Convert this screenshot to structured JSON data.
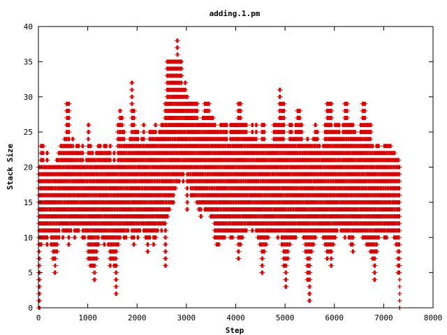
{
  "chart_data": {
    "type": "scatter",
    "title": "adding.1.pm",
    "xlabel": "Step",
    "ylabel": "Stack Size",
    "xlim": [
      0,
      8000
    ],
    "ylim": [
      0,
      40
    ],
    "x_ticks": [
      "0",
      "1000",
      "2000",
      "3000",
      "4000",
      "5000",
      "6000",
      "7000",
      "8000"
    ],
    "y_ticks": [
      "0",
      "5",
      "10",
      "15",
      "20",
      "25",
      "30",
      "35",
      "40"
    ],
    "marker": "+",
    "grid": false,
    "legend": "none",
    "series_color": "#dd0000",
    "points_x_range": [
      0,
      7330
    ],
    "points_note_series": [
      {
        "x": [
          0,
          40,
          80,
          120,
          160,
          200,
          240,
          280,
          320,
          360,
          400,
          440,
          480,
          520,
          560,
          600,
          640,
          680,
          720,
          760,
          800,
          840,
          880,
          920,
          960,
          1000,
          1040,
          1080,
          1120,
          1160,
          1200,
          1240,
          1280,
          1320,
          1360,
          1400,
          1440,
          1480,
          1520,
          1560,
          1600,
          1640,
          1680,
          1720,
          1760,
          1800,
          1840,
          1880,
          1920,
          1960,
          2000,
          2040,
          2080,
          2120,
          2160,
          2200,
          2240,
          2280,
          2320,
          2360,
          2400,
          2440,
          2480,
          2520,
          2560,
          2600,
          2640,
          2680,
          2720,
          2760,
          2800,
          2840,
          2880,
          2920,
          2960,
          3000,
          3040,
          3080,
          3120,
          3160,
          3200,
          3240,
          3280,
          3320,
          3360,
          3400,
          3440,
          3480,
          3520,
          3560,
          3600,
          3640,
          3680,
          3720,
          3760,
          3800,
          3840,
          3880,
          3920,
          3960,
          4000,
          4040,
          4080,
          4120,
          4160,
          4200,
          4240,
          4280,
          4320,
          4360,
          4400,
          4440,
          4480,
          4520,
          4560,
          4600,
          4640,
          4680,
          4720,
          4760,
          4800,
          4840,
          4880,
          4920,
          4960,
          5000,
          5040,
          5080,
          5120,
          5160,
          5200,
          5240,
          5280,
          5320,
          5360,
          5400,
          5440,
          5480,
          5520,
          5560,
          5600,
          5640,
          5680,
          5720,
          5760,
          5800,
          5840,
          5880,
          5920,
          5960,
          6000,
          6040,
          6080,
          6120,
          6160,
          6200,
          6240,
          6280,
          6320,
          6360,
          6400,
          6440,
          6480,
          6520,
          6560,
          6600,
          6640,
          6680,
          6720,
          6760,
          6800,
          6840,
          6880,
          6920,
          6960,
          7000,
          7040,
          7080,
          7120,
          7160,
          7200,
          7240,
          7280,
          7320
        ],
        "ymin": [
          0,
          9,
          10,
          10,
          9,
          11,
          9,
          7,
          5,
          8,
          10,
          12,
          10,
          11,
          11,
          9,
          11,
          12,
          10,
          11,
          11,
          12,
          10,
          10,
          11,
          7,
          6,
          6,
          4,
          7,
          9,
          11,
          10,
          9,
          10,
          9,
          6,
          7,
          6,
          2,
          9,
          10,
          11,
          10,
          10,
          11,
          12,
          10,
          9,
          11,
          10,
          11,
          12,
          11,
          10,
          8,
          10,
          11,
          9,
          10,
          11,
          12,
          11,
          12,
          6,
          13,
          14,
          15,
          15,
          17,
          18,
          18,
          19,
          18,
          20,
          14,
          18,
          16,
          16,
          16,
          15,
          14,
          13,
          15,
          14,
          14,
          14,
          13,
          13,
          10,
          9,
          9,
          10,
          10,
          10,
          11,
          11,
          10,
          10,
          11,
          11,
          7,
          9,
          10,
          11,
          11,
          12,
          12,
          11,
          12,
          11,
          10,
          9,
          5,
          8,
          9,
          10,
          11,
          11,
          11,
          11,
          10,
          11,
          9,
          6,
          3,
          7,
          9,
          10,
          10,
          10,
          11,
          11,
          11,
          10,
          8,
          4,
          1,
          8,
          9,
          10,
          11,
          11,
          11,
          10,
          9,
          7,
          8,
          6,
          9,
          10,
          11,
          12,
          11,
          11,
          10,
          11,
          10,
          9,
          8,
          11,
          11,
          11,
          11,
          10,
          10,
          9,
          9,
          8,
          7,
          4,
          8,
          10,
          11,
          11,
          10,
          10,
          11,
          11,
          11,
          10,
          9,
          5,
          0
        ],
        "ymax": [
          20,
          23,
          23,
          20,
          22,
          20,
          20,
          20,
          20,
          21,
          22,
          23,
          23,
          24,
          29,
          29,
          23,
          24,
          22,
          23,
          23,
          22,
          23,
          20,
          21,
          26,
          23,
          22,
          21,
          22,
          23,
          23,
          22,
          23,
          23,
          22,
          23,
          20,
          22,
          20,
          26,
          28,
          27,
          25,
          23,
          23,
          24,
          32,
          28,
          25,
          25,
          23,
          24,
          26,
          23,
          23,
          25,
          25,
          25,
          26,
          24,
          25,
          26,
          26,
          29,
          35,
          35,
          35,
          35,
          35,
          38,
          35,
          35,
          31,
          32,
          30,
          29,
          29,
          29,
          29,
          29,
          26,
          26,
          27,
          29,
          29,
          29,
          27,
          27,
          26,
          25,
          25,
          26,
          26,
          26,
          26,
          23,
          26,
          26,
          26,
          26,
          29,
          29,
          26,
          26,
          26,
          24,
          24,
          26,
          24,
          26,
          23,
          23,
          26,
          26,
          23,
          23,
          23,
          23,
          26,
          26,
          26,
          31,
          29,
          29,
          23,
          23,
          26,
          26,
          24,
          26,
          28,
          28,
          26,
          23,
          23,
          24,
          23,
          23,
          24,
          26,
          25,
          23,
          22,
          23,
          26,
          29,
          29,
          29,
          25,
          26,
          26,
          26,
          24,
          26,
          29,
          29,
          26,
          26,
          26,
          25,
          24,
          24,
          26,
          29,
          29,
          26,
          26,
          26,
          23,
          22,
          23,
          23,
          22,
          22,
          23,
          23,
          23,
          23,
          22,
          22,
          21,
          21,
          20
        ]
      }
    ]
  }
}
